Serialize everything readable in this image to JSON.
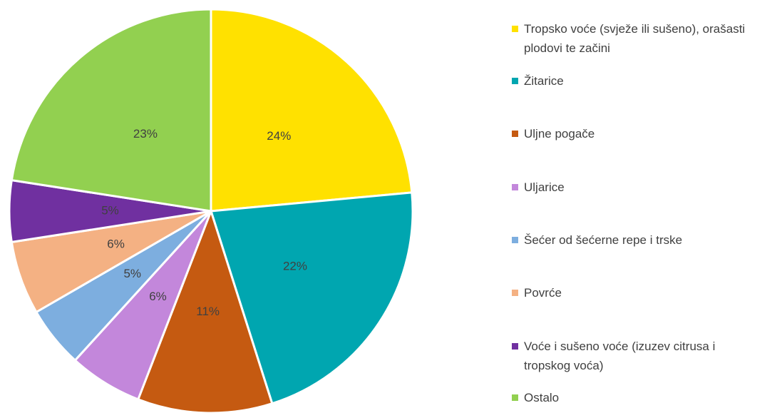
{
  "chart_data": {
    "type": "pie",
    "categories": [
      "Tropsko voće (svježe ili sušeno), orašasti plodovi te začini",
      "Žitarice",
      "Uljne pogače",
      "Uljarice",
      "Šećer od šećerne repe i trske",
      "Povrće",
      "Voće i sušeno voće (izuzev citrusa i tropskog voća)",
      "Ostalo"
    ],
    "values": [
      24,
      22,
      11,
      6,
      5,
      6,
      5,
      23
    ],
    "value_labels": [
      "24%",
      "22%",
      "11%",
      "6%",
      "5%",
      "6%",
      "5%",
      "23%"
    ],
    "colors": [
      "#FFE100",
      "#00A6B0",
      "#C55A11",
      "#C387DB",
      "#7DAEDF",
      "#F4B183",
      "#7030A0",
      "#92D050"
    ],
    "legend": "right"
  }
}
